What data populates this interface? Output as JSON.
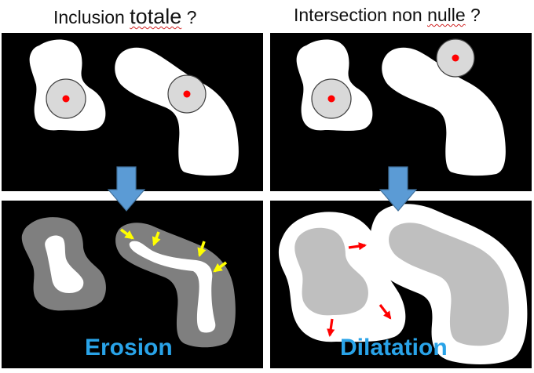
{
  "titles": {
    "left_prefix": "Inclusion ",
    "left_word": "totale",
    "left_suffix": " ?",
    "right_prefix": "Intersection non ",
    "right_word": "nulle",
    "right_suffix": " ?"
  },
  "captions": {
    "erosion": "Erosion",
    "dilation": "Dilatation"
  },
  "colors": {
    "background": "#000000",
    "shape": "#ffffff",
    "structuring_element": "#d9d9d9",
    "center_dot": "#ff0000",
    "eroded_band": "#7f7f7f",
    "dilated_core": "#bfbfbf",
    "down_arrow": "#5b9bd5",
    "erosion_arrows": "#ffff00",
    "dilation_arrows": "#ff0000",
    "caption": "#29a3e8",
    "squiggle": "#d02020"
  },
  "icons": {
    "down_arrow": "arrow-down-icon",
    "erosion_arrow": "arrow-icon",
    "dilation_arrow": "arrow-icon"
  }
}
